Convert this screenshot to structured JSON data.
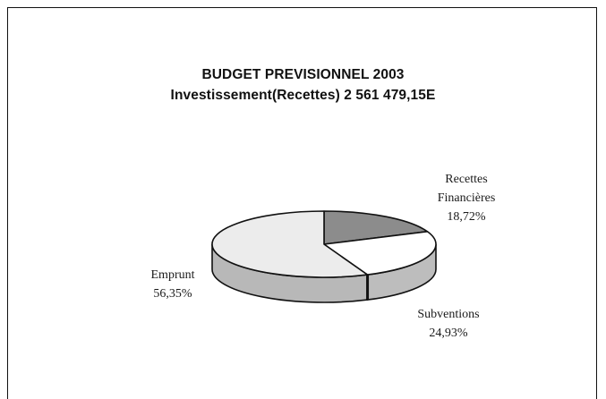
{
  "chart_data": {
    "type": "pie",
    "title": "BUDGET PREVISIONNEL 2003",
    "subtitle": "Investissement(Recettes) 2 561 479,15E",
    "slices": [
      {
        "label": [
          "Recettes",
          "Financières"
        ],
        "value_label": "18,72%",
        "value": 18.72,
        "color": "#8c8c8c"
      },
      {
        "label": [
          "Subventions"
        ],
        "value_label": "24,93%",
        "value": 24.93,
        "color": "#ffffff"
      },
      {
        "label": [
          "Emprunt"
        ],
        "value_label": "56,35%",
        "value": 56.35,
        "color": "#ececec"
      }
    ]
  }
}
